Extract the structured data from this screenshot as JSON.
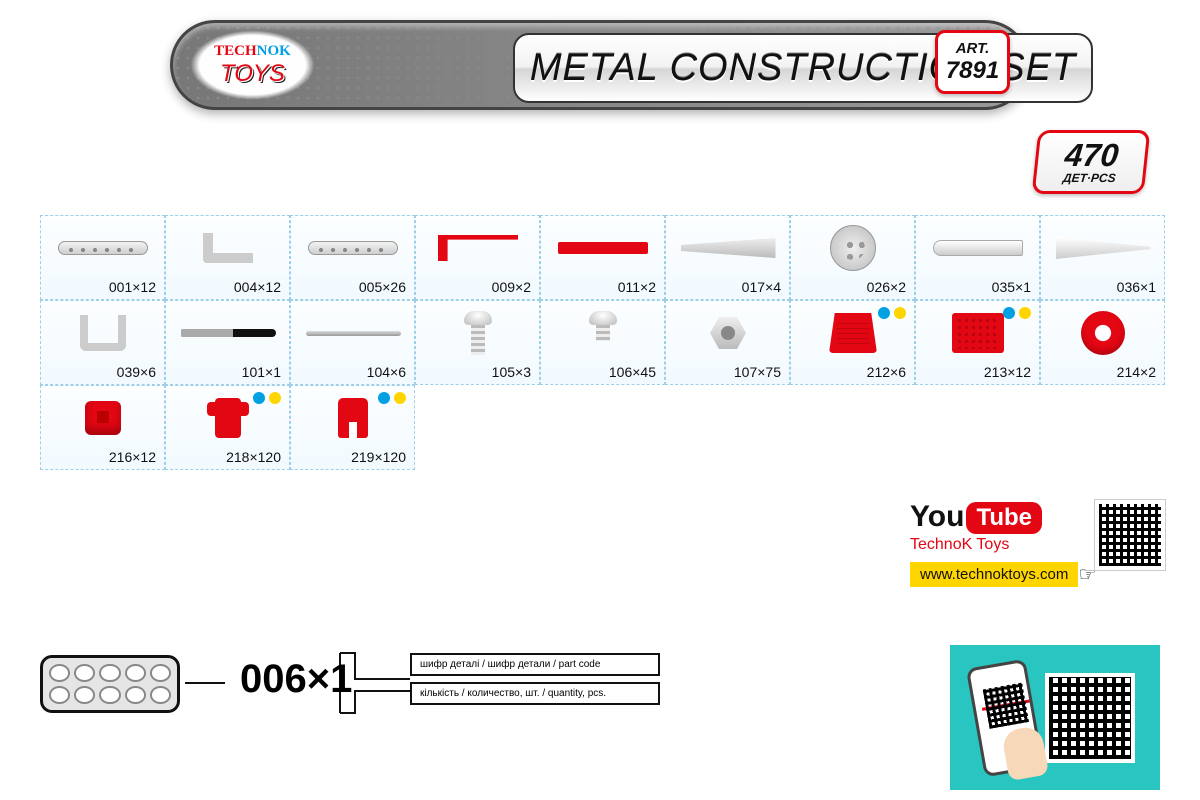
{
  "brand": {
    "line1_a": "TECH",
    "line1_b": "NOK",
    "line2": "TOYS"
  },
  "title": "METAL CONSTRUCTION SET",
  "art": {
    "label": "ART.",
    "number": "7891"
  },
  "pcs": {
    "count": "470",
    "label": "ДЕТ·PCS"
  },
  "colors": {
    "accent_red": "#e30613",
    "accent_blue": "#00a0e3",
    "accent_yellow": "#ffd500",
    "cell_border": "#9ecfe8",
    "metal_light": "#eeeeee",
    "metal_dark": "#bbbbbb",
    "scan_bg": "#29c5c0"
  },
  "parts": [
    [
      {
        "code": "001",
        "qty": 12,
        "glyph": "strip_holes",
        "color": "metal"
      },
      {
        "code": "004",
        "qty": 12,
        "glyph": "angle",
        "color": "metal"
      },
      {
        "code": "005",
        "qty": 26,
        "glyph": "strip_holes",
        "color": "metal"
      },
      {
        "code": "009",
        "qty": 2,
        "glyph": "red_angle",
        "color": "red"
      },
      {
        "code": "011",
        "qty": 2,
        "glyph": "red_strip",
        "color": "red"
      },
      {
        "code": "017",
        "qty": 4,
        "glyph": "taper",
        "color": "metal"
      },
      {
        "code": "026",
        "qty": 2,
        "glyph": "disc",
        "color": "metal"
      },
      {
        "code": "035",
        "qty": 1,
        "glyph": "tube",
        "color": "metal"
      },
      {
        "code": "036",
        "qty": 1,
        "glyph": "blade",
        "color": "metal"
      }
    ],
    [
      {
        "code": "039",
        "qty": 6,
        "glyph": "ubracket",
        "color": "metal"
      },
      {
        "code": "101",
        "qty": 1,
        "glyph": "screwdriver",
        "color": "metal"
      },
      {
        "code": "104",
        "qty": 6,
        "glyph": "rod",
        "color": "metal"
      },
      {
        "code": "105",
        "qty": 3,
        "glyph": "bolt_long",
        "color": "metal"
      },
      {
        "code": "106",
        "qty": 45,
        "glyph": "bolt_short",
        "color": "metal"
      },
      {
        "code": "107",
        "qty": 75,
        "glyph": "nut",
        "color": "metal"
      },
      {
        "code": "212",
        "qty": 6,
        "glyph": "red_trapezoid",
        "color": "red",
        "dots": [
          "blue",
          "yellow"
        ]
      },
      {
        "code": "213",
        "qty": 12,
        "glyph": "red_panel",
        "color": "red",
        "dots": [
          "blue",
          "yellow"
        ]
      },
      {
        "code": "214",
        "qty": 2,
        "glyph": "red_ring",
        "color": "red"
      }
    ],
    [
      {
        "code": "216",
        "qty": 12,
        "glyph": "red_cyl",
        "color": "red"
      },
      {
        "code": "218",
        "qty": 120,
        "glyph": "red_peg",
        "color": "red",
        "dots": [
          "blue",
          "yellow"
        ]
      },
      {
        "code": "219",
        "qty": 120,
        "glyph": "red_clip",
        "color": "red",
        "dots": [
          "blue",
          "yellow"
        ]
      }
    ]
  ],
  "legend": {
    "example_code": "006×1",
    "line1": "шифр деталі / шифр детали / part code",
    "line2": "кількість / количество, шт. / quantity, pcs."
  },
  "youtube": {
    "you": "You",
    "tube": "Tube",
    "channel": "TechnoK Toys",
    "url": "www.technoktoys.com"
  }
}
